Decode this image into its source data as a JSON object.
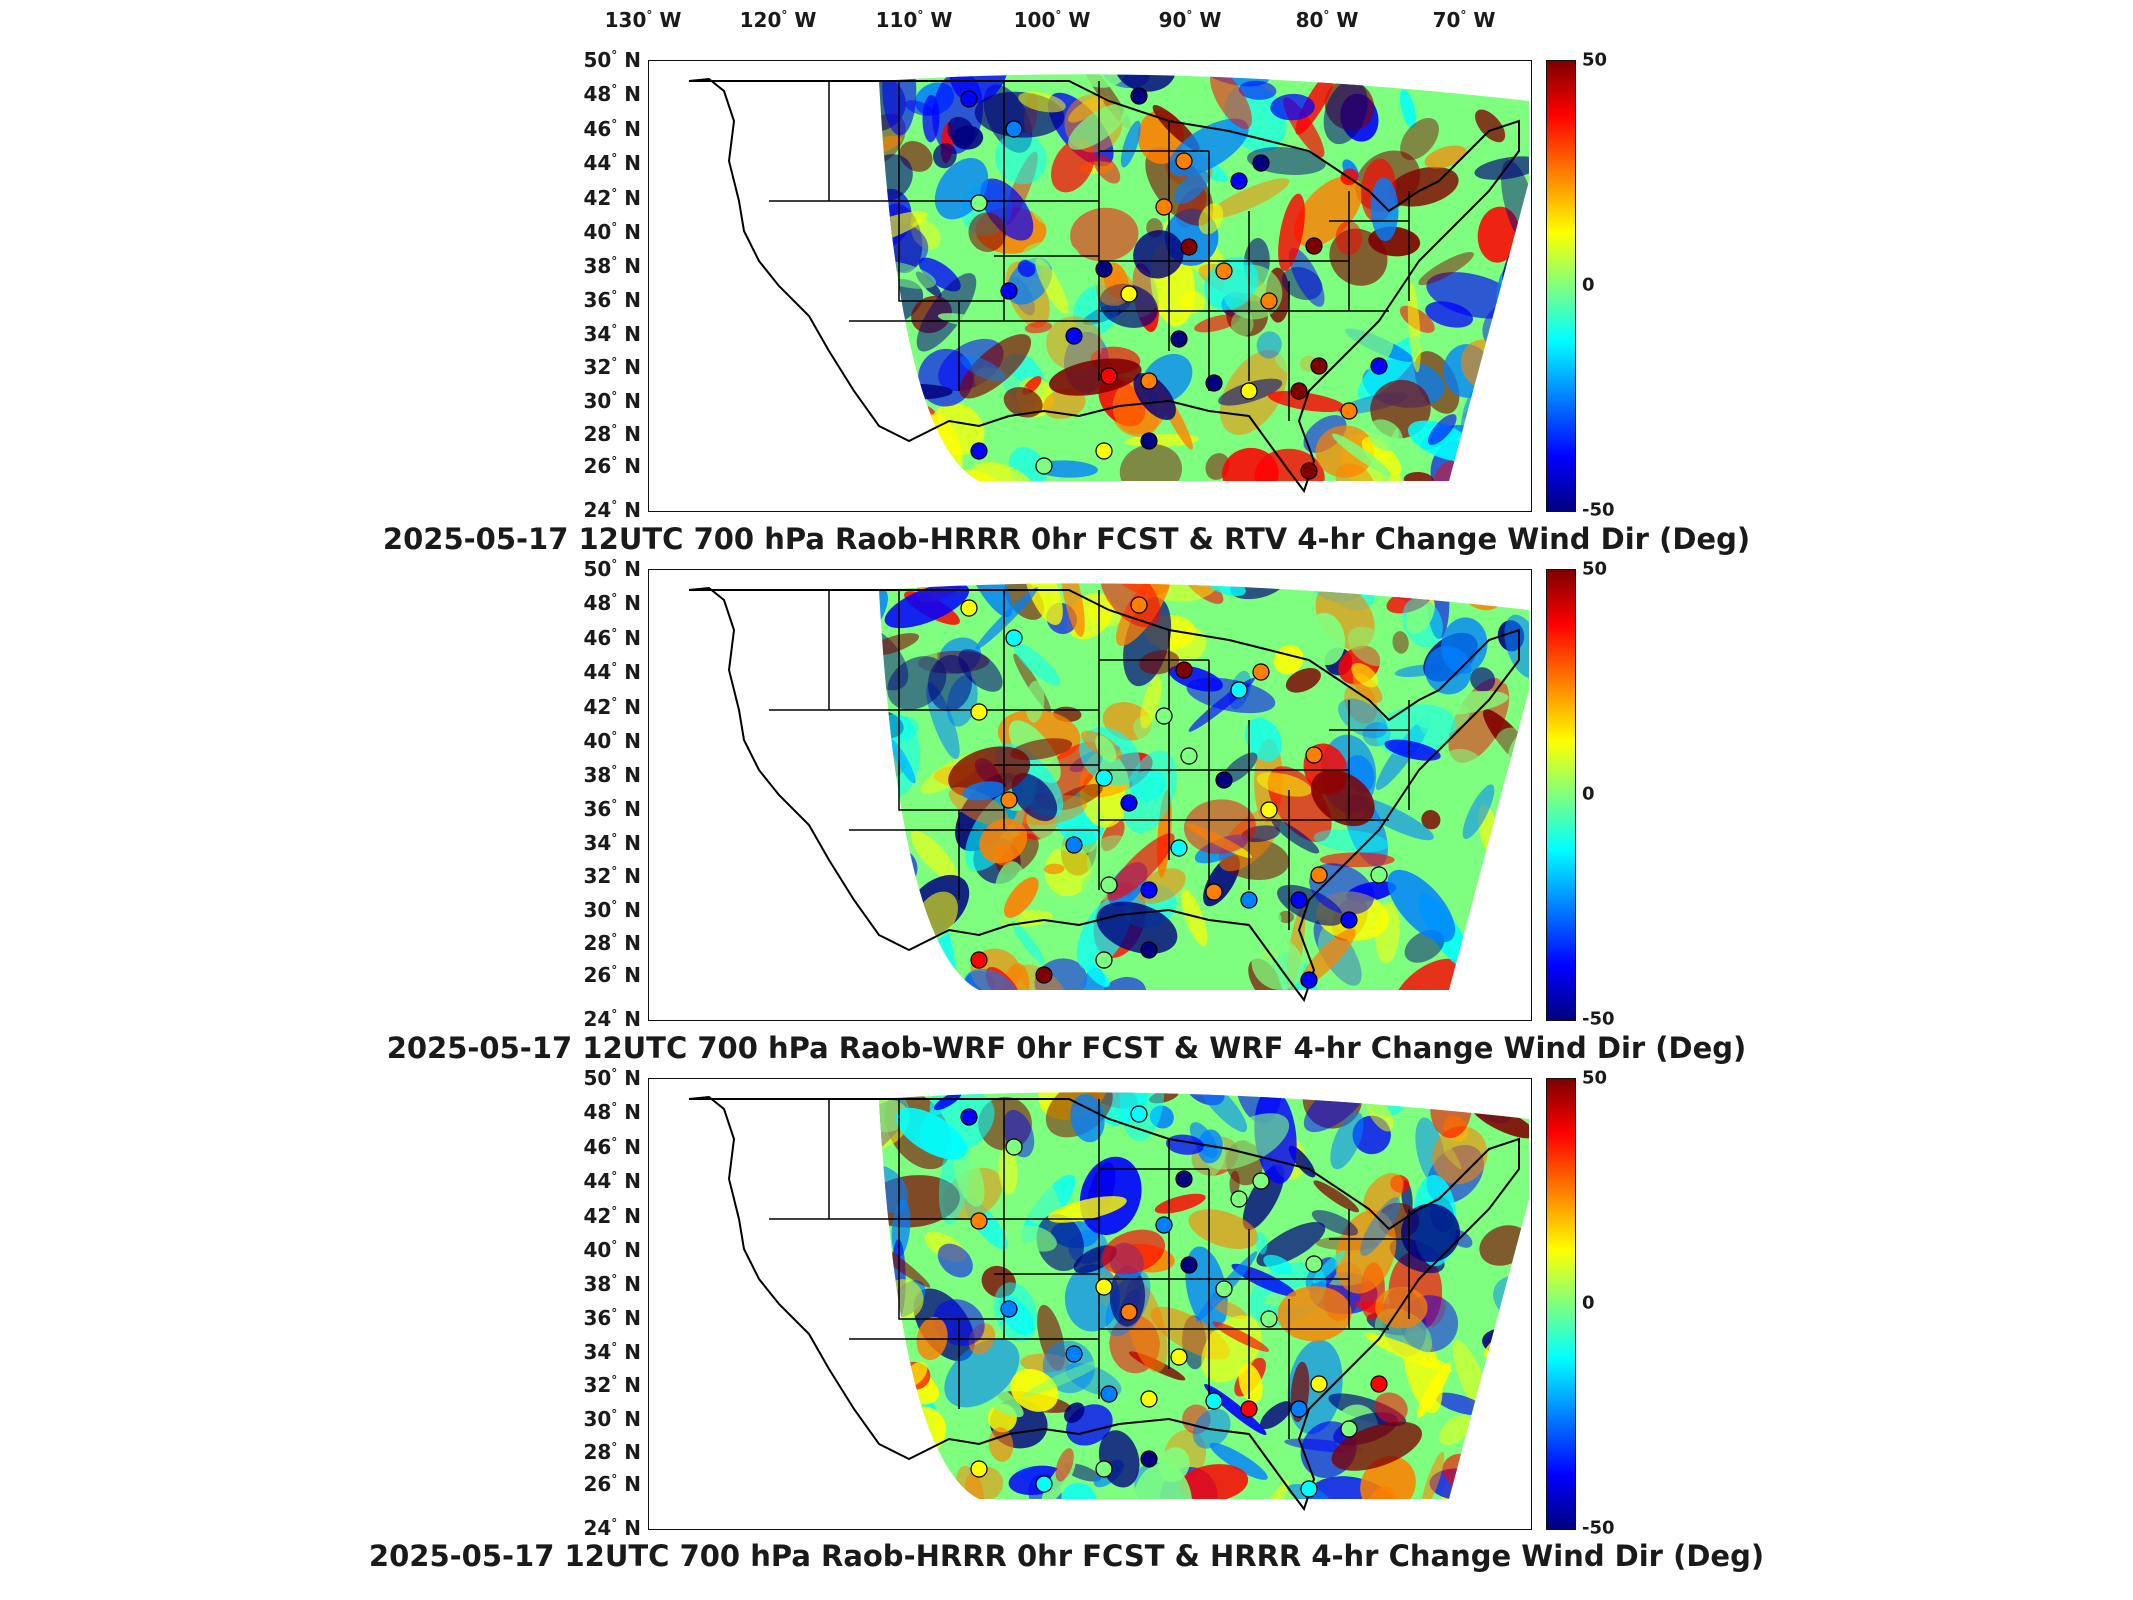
{
  "lon_labels": [
    "130",
    "120",
    "110",
    "100",
    "90",
    "80",
    "70"
  ],
  "lon_suffix": "W",
  "lat_labels": [
    "50",
    "48",
    "46",
    "44",
    "42",
    "40",
    "38",
    "36",
    "34",
    "32",
    "30",
    "28",
    "26",
    "24"
  ],
  "lat_suffix": "N",
  "degree_symbol": "°",
  "colorbar": {
    "max_label": "50",
    "mid_label": "0",
    "min_label": "-50",
    "colors": [
      "#7f0000",
      "#ff0000",
      "#ff7f00",
      "#ffff00",
      "#7fff7f",
      "#00ffff",
      "#007fff",
      "#0000ff",
      "#00007f"
    ]
  },
  "panels": [
    {
      "title": "2025-05-17 12UTC 700 hPa Raob-HRRR 0hr FCST & RTV 4-hr Change Wind Dir (Deg)"
    },
    {
      "title": "2025-05-17 12UTC 700 hPa Raob-WRF 0hr FCST & WRF 4-hr Change Wind Dir (Deg)"
    },
    {
      "title": "2025-05-17 12UTC 700 hPa Raob-HRRR 0hr FCST & HRRR 4-hr Change Wind Dir (Deg)"
    }
  ]
}
